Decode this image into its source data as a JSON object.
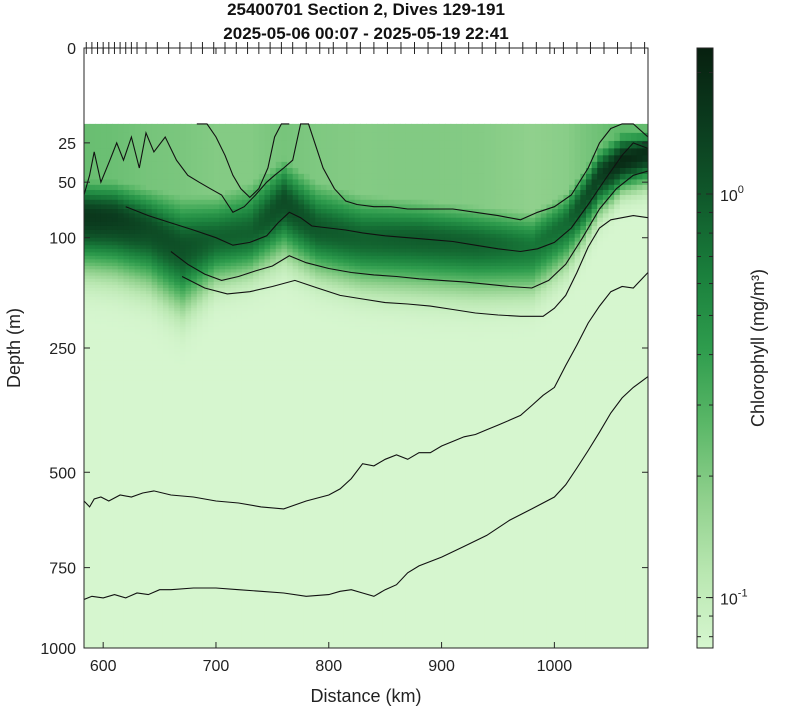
{
  "chart_data": {
    "type": "heatmap",
    "title_line1": "25400701 Section 2, Dives 129-191",
    "title_line2": "2025-05-06 00:07 - 2025-05-19 22:41",
    "xlabel": "Distance (km)",
    "ylabel": "Depth (m)",
    "colorbar_label": "Chlorophyll (mg/m³)",
    "xlim": [
      583,
      1083
    ],
    "ylim": [
      0,
      1000
    ],
    "y_scale": "sqrt",
    "color_scale": "log",
    "clim": [
      0.075,
      2.3
    ],
    "x_ticks": [
      {
        "value": 600,
        "label": "600"
      },
      {
        "value": 700,
        "label": "700"
      },
      {
        "value": 800,
        "label": "800"
      },
      {
        "value": 900,
        "label": "900"
      },
      {
        "value": 1000,
        "label": "1000"
      }
    ],
    "y_ticks": [
      {
        "value": 0,
        "label": "0"
      },
      {
        "value": 25,
        "label": "25"
      },
      {
        "value": 50,
        "label": "50"
      },
      {
        "value": 100,
        "label": "100"
      },
      {
        "value": 250,
        "label": "250"
      },
      {
        "value": 500,
        "label": "500"
      },
      {
        "value": 750,
        "label": "750"
      },
      {
        "value": 1000,
        "label": "1000"
      }
    ],
    "colorbar_ticks": [
      {
        "value": 1.0,
        "label": "10",
        "exp": "0"
      },
      {
        "value": 0.1,
        "label": "10",
        "exp": "-1"
      }
    ],
    "colormap": [
      "#d6f6cf",
      "#b9e7b1",
      "#8fd08c",
      "#5ab767",
      "#2e9c4d",
      "#1a7f3c",
      "#10592b",
      "#0b3b1e",
      "#07200f"
    ],
    "data_min_depth": 16,
    "dive_positions": [
      585,
      590,
      595,
      600,
      605,
      610,
      615,
      620,
      625,
      630,
      638,
      648,
      658,
      668,
      678,
      688,
      698,
      708,
      718,
      728,
      738,
      748,
      758,
      768,
      780,
      792,
      804,
      816,
      828,
      840,
      852,
      864,
      876,
      888,
      900,
      912,
      924,
      936,
      948,
      960,
      972,
      984,
      996,
      1008,
      1020,
      1032,
      1044,
      1056,
      1068,
      1080
    ],
    "chlorophyll_profiles": [
      {
        "distance": 585,
        "depth_top": 45,
        "depth_peak": 78,
        "depth_bottom": 145,
        "peak": 1.6
      },
      {
        "distance": 610,
        "depth_top": 45,
        "depth_peak": 80,
        "depth_bottom": 150,
        "peak": 1.5
      },
      {
        "distance": 640,
        "depth_top": 50,
        "depth_peak": 90,
        "depth_bottom": 165,
        "peak": 1.2
      },
      {
        "distance": 670,
        "depth_top": 55,
        "depth_peak": 110,
        "depth_bottom": 200,
        "peak": 1.1
      },
      {
        "distance": 700,
        "depth_top": 55,
        "depth_peak": 100,
        "depth_bottom": 160,
        "peak": 0.9
      },
      {
        "distance": 730,
        "depth_top": 45,
        "depth_peak": 95,
        "depth_bottom": 150,
        "peak": 0.9
      },
      {
        "distance": 760,
        "depth_top": 30,
        "depth_peak": 65,
        "depth_bottom": 125,
        "peak": 1.2
      },
      {
        "distance": 790,
        "depth_top": 45,
        "depth_peak": 90,
        "depth_bottom": 150,
        "peak": 1.0
      },
      {
        "distance": 830,
        "depth_top": 55,
        "depth_peak": 100,
        "depth_bottom": 165,
        "peak": 0.9
      },
      {
        "distance": 880,
        "depth_top": 60,
        "depth_peak": 100,
        "depth_bottom": 170,
        "peak": 0.95
      },
      {
        "distance": 930,
        "depth_top": 65,
        "depth_peak": 105,
        "depth_bottom": 175,
        "peak": 0.9
      },
      {
        "distance": 980,
        "depth_top": 70,
        "depth_peak": 110,
        "depth_bottom": 175,
        "peak": 0.7
      },
      {
        "distance": 1010,
        "depth_top": 55,
        "depth_peak": 85,
        "depth_bottom": 140,
        "peak": 0.8
      },
      {
        "distance": 1040,
        "depth_top": 25,
        "depth_peak": 45,
        "depth_bottom": 80,
        "peak": 1.4
      },
      {
        "distance": 1060,
        "depth_top": 18,
        "depth_peak": 35,
        "depth_bottom": 60,
        "peak": 2.0
      },
      {
        "distance": 1083,
        "depth_top": 18,
        "depth_peak": 30,
        "depth_bottom": 55,
        "peak": 1.8
      }
    ],
    "contour_lines": [
      {
        "x": [
          683,
          692,
          700,
          708,
          715,
          722,
          730,
          738,
          746,
          752,
          758,
          765
        ],
        "y": [
          16,
          16,
          22,
          32,
          45,
          55,
          62,
          55,
          40,
          22,
          16,
          16
        ]
      },
      {
        "x": [
          583,
          588,
          592,
          598,
          606,
          612,
          618,
          625,
          632,
          638,
          645,
          655,
          665,
          675,
          685,
          695,
          705,
          715,
          725,
          735,
          745,
          752,
          760,
          768,
          775,
          782,
          795,
          805,
          815,
          825,
          840,
          855,
          870,
          890,
          910,
          930,
          950,
          970,
          985,
          1000,
          1015,
          1030,
          1040,
          1050,
          1060,
          1070,
          1083
        ],
        "y": [
          60,
          45,
          30,
          50,
          35,
          25,
          35,
          22,
          40,
          20,
          30,
          22,
          35,
          45,
          50,
          55,
          60,
          75,
          70,
          60,
          50,
          45,
          40,
          35,
          16,
          16,
          40,
          55,
          65,
          68,
          70,
          70,
          72,
          72,
          72,
          75,
          78,
          82,
          75,
          70,
          60,
          40,
          25,
          18,
          16,
          16,
          22
        ]
      },
      {
        "x": [
          620,
          640,
          660,
          680,
          700,
          715,
          730,
          745,
          755,
          765,
          775,
          785,
          800,
          815,
          830,
          850,
          870,
          890,
          910,
          930,
          950,
          970,
          985,
          1000,
          1015,
          1030,
          1045,
          1060,
          1070,
          1083
        ],
        "y": [
          70,
          78,
          85,
          92,
          100,
          108,
          105,
          98,
          85,
          75,
          80,
          88,
          90,
          92,
          95,
          98,
          100,
          102,
          104,
          108,
          112,
          115,
          112,
          105,
          90,
          68,
          48,
          32,
          25,
          28
        ]
      },
      {
        "x": [
          660,
          675,
          690,
          705,
          720,
          735,
          750,
          765,
          780,
          800,
          820,
          840,
          860,
          880,
          900,
          920,
          940,
          960,
          980,
          995,
          1010,
          1025,
          1040,
          1055,
          1070,
          1083
        ],
        "y": [
          115,
          130,
          142,
          150,
          145,
          138,
          132,
          120,
          128,
          135,
          140,
          143,
          145,
          148,
          150,
          152,
          155,
          158,
          160,
          150,
          130,
          100,
          72,
          55,
          45,
          42
        ]
      },
      {
        "x": [
          670,
          690,
          710,
          730,
          750,
          770,
          790,
          810,
          830,
          850,
          870,
          890,
          910,
          930,
          950,
          970,
          990,
          1000,
          1010,
          1020,
          1030,
          1040,
          1050,
          1060,
          1070,
          1083
        ],
        "y": [
          145,
          160,
          168,
          165,
          158,
          150,
          160,
          170,
          175,
          180,
          182,
          185,
          190,
          195,
          198,
          200,
          200,
          188,
          170,
          140,
          110,
          90,
          82,
          80,
          78,
          80
        ]
      },
      {
        "x": [
          583,
          588,
          592,
          598,
          605,
          615,
          625,
          635,
          645,
          660,
          680,
          700,
          720,
          740,
          760,
          780,
          800,
          810,
          820,
          830,
          840,
          850,
          860,
          870,
          880,
          890,
          900,
          910,
          920,
          930,
          940,
          950,
          960,
          970,
          980,
          990,
          1000,
          1010,
          1020,
          1030,
          1040,
          1050,
          1060,
          1070,
          1083
        ],
        "y": [
          570,
          585,
          565,
          560,
          570,
          555,
          560,
          550,
          545,
          555,
          560,
          570,
          575,
          585,
          590,
          570,
          555,
          540,
          515,
          480,
          485,
          470,
          460,
          470,
          455,
          455,
          440,
          430,
          420,
          415,
          405,
          395,
          385,
          375,
          355,
          335,
          320,
          280,
          245,
          210,
          185,
          165,
          158,
          160,
          140
        ]
      },
      {
        "x": [
          583,
          590,
          600,
          610,
          620,
          630,
          640,
          650,
          660,
          680,
          700,
          720,
          740,
          760,
          780,
          800,
          810,
          820,
          830,
          840,
          850,
          860,
          870,
          880,
          900,
          920,
          940,
          960,
          980,
          1000,
          1010,
          1020,
          1030,
          1040,
          1050,
          1060,
          1070,
          1083
        ],
        "y": [
          845,
          835,
          840,
          830,
          840,
          825,
          830,
          815,
          815,
          810,
          810,
          815,
          820,
          825,
          835,
          830,
          820,
          815,
          825,
          835,
          815,
          800,
          765,
          745,
          720,
          690,
          660,
          620,
          590,
          560,
          530,
          490,
          450,
          410,
          370,
          340,
          320,
          300
        ]
      }
    ]
  }
}
